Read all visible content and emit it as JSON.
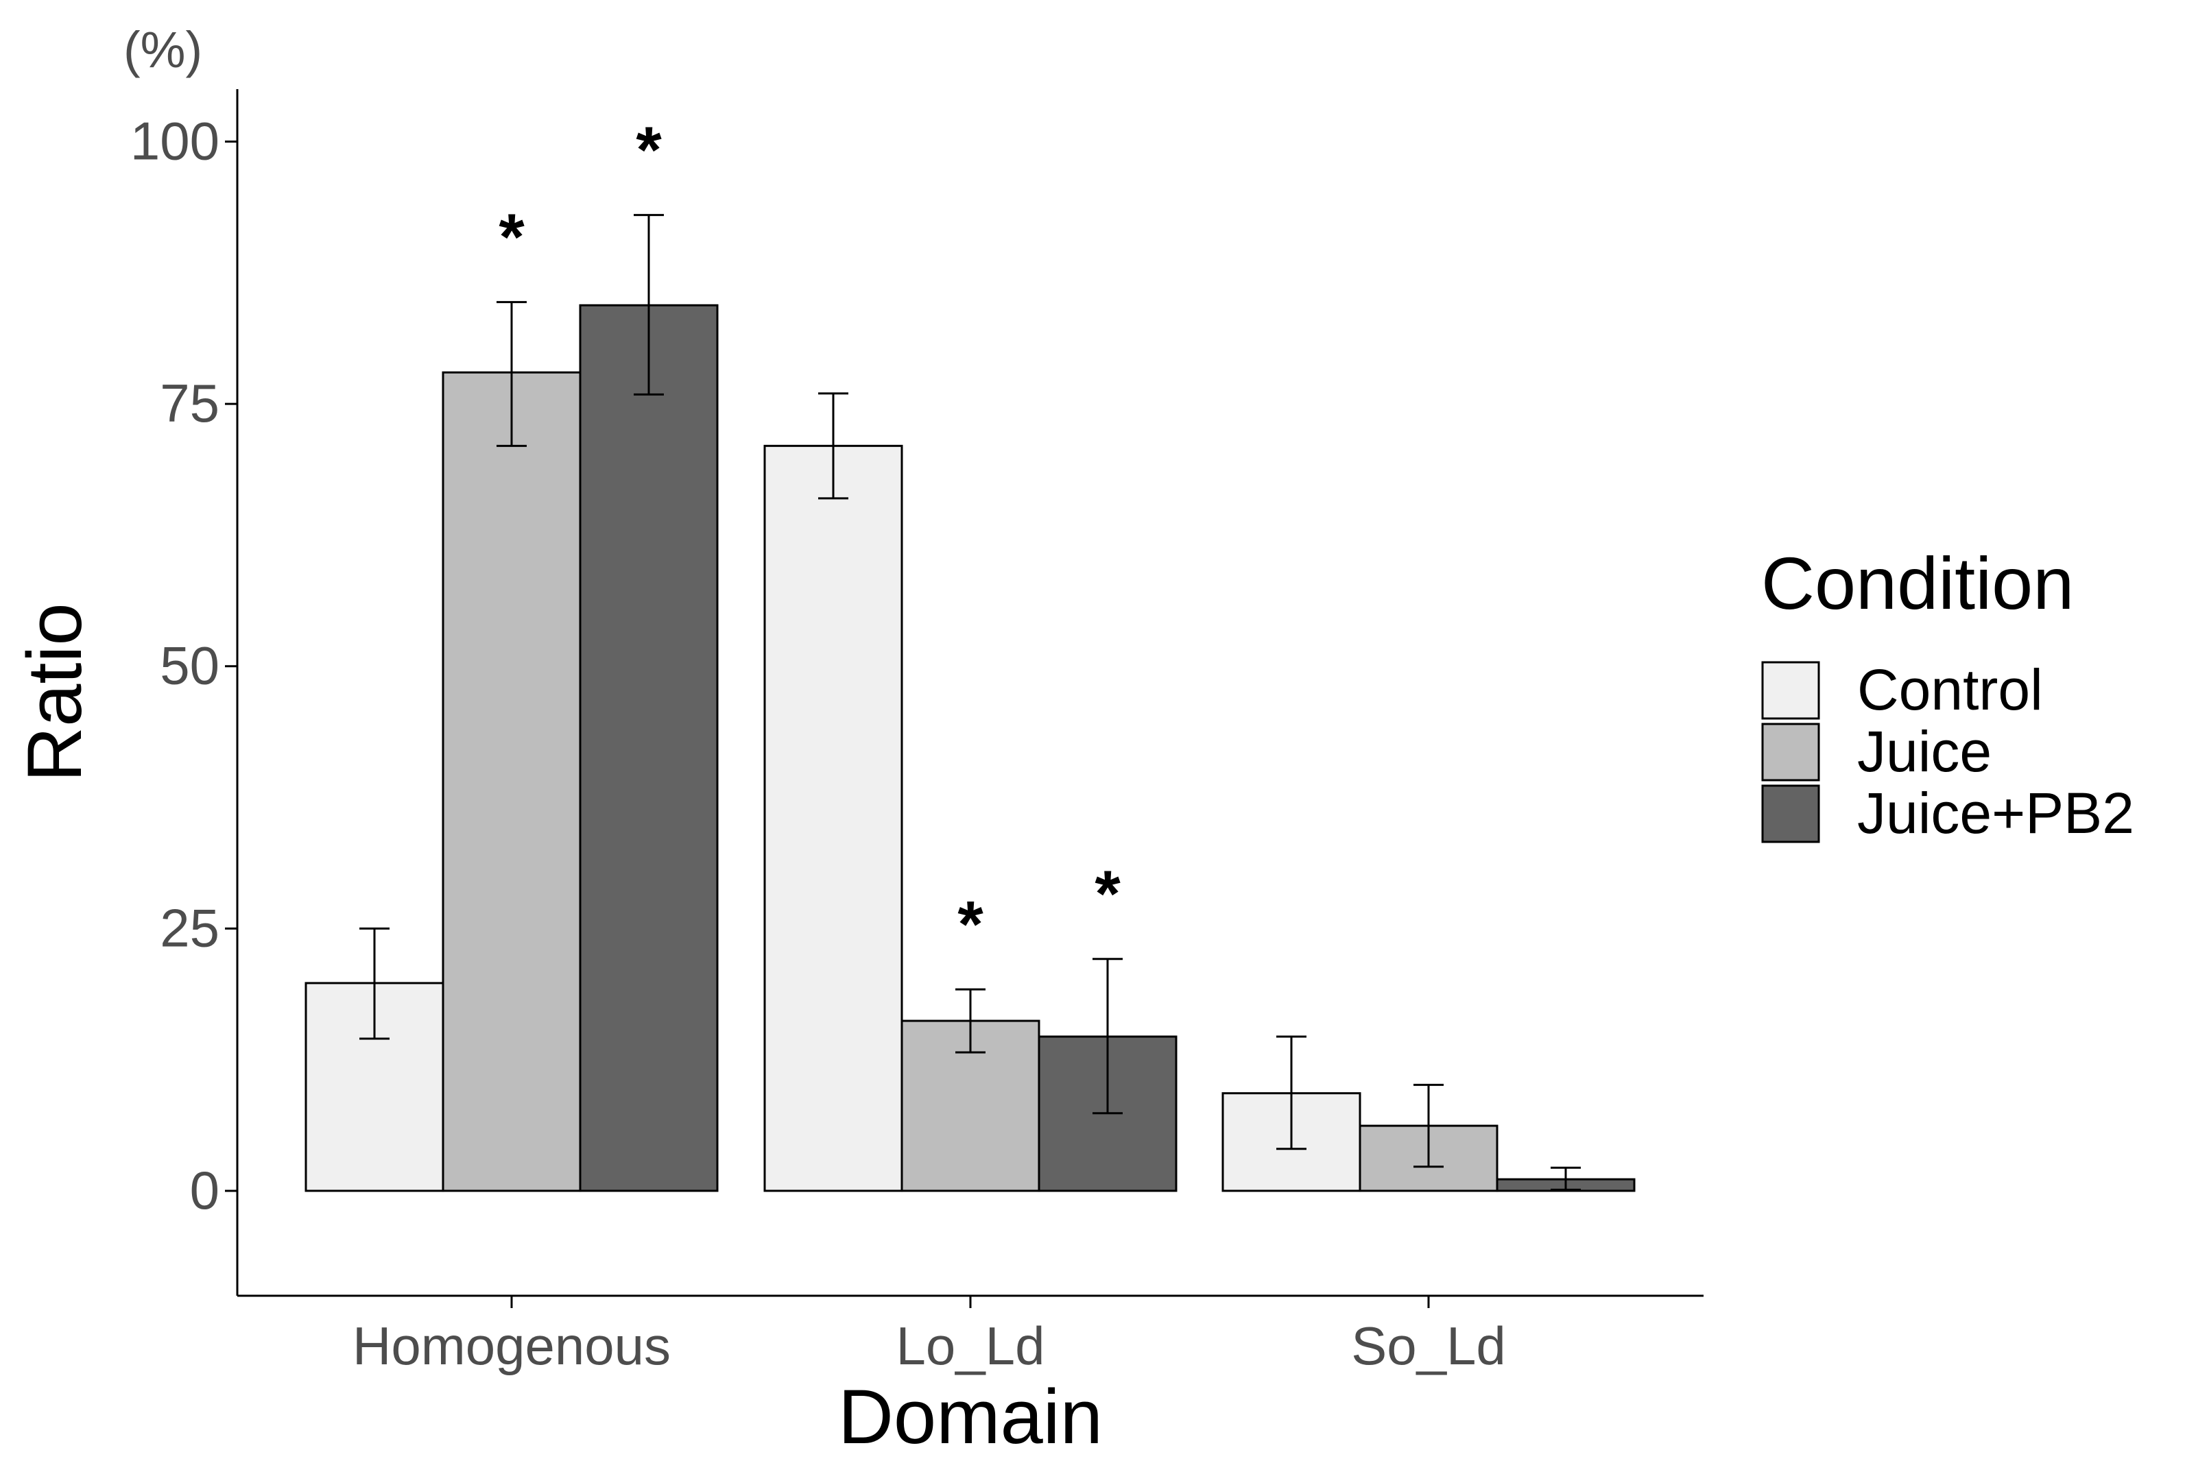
{
  "chart_data": {
    "type": "bar",
    "title": "",
    "xlabel": "Domain",
    "ylabel": "Ratio",
    "y_unit_label": "(%)",
    "ylim": [
      -10,
      105
    ],
    "yticks": [
      0,
      25,
      50,
      75,
      100
    ],
    "ytick_labels": [
      "0",
      "25",
      "50",
      "75",
      "100"
    ],
    "categories": [
      "Homogenous",
      "Lo_Ld",
      "So_Ld"
    ],
    "legend": {
      "title": "Condition",
      "position": "right"
    },
    "series": [
      {
        "name": "Control",
        "color": "#f0f0f0",
        "values": [
          19.8,
          71.0,
          9.3
        ],
        "error_low": [
          14.5,
          66.0,
          4.0
        ],
        "error_high": [
          25.0,
          76.0,
          14.7
        ],
        "significance": [
          "",
          "",
          ""
        ]
      },
      {
        "name": "Juice",
        "color": "#bdbdbd",
        "values": [
          78.0,
          16.2,
          6.2
        ],
        "error_low": [
          71.0,
          13.2,
          2.3
        ],
        "error_high": [
          84.7,
          19.2,
          10.1
        ],
        "significance": [
          "*",
          "*",
          ""
        ]
      },
      {
        "name": "Juice+PB2",
        "color": "#636363",
        "values": [
          84.4,
          14.7,
          1.1
        ],
        "error_low": [
          75.9,
          7.4,
          0.1
        ],
        "error_high": [
          93.0,
          22.1,
          2.2
        ],
        "significance": [
          "*",
          "*",
          ""
        ]
      }
    ]
  }
}
